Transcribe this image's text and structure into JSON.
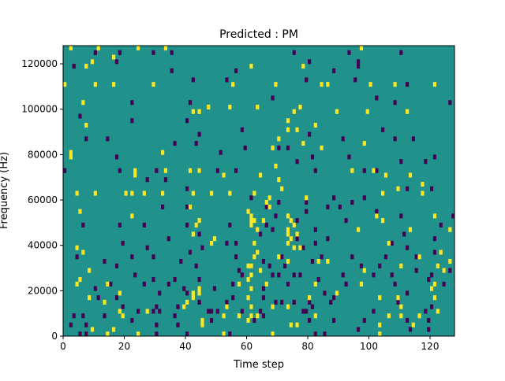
{
  "chart_data": {
    "type": "heatmap",
    "title": "Predicted : PM",
    "xlabel": "Time step",
    "ylabel": "Frequency (Hz)",
    "xlim": [
      0,
      128
    ],
    "ylim": [
      0,
      128000
    ],
    "x_ticks": [
      0,
      20,
      40,
      60,
      80,
      100,
      120
    ],
    "x_tick_labels": [
      "0",
      "20",
      "40",
      "60",
      "80",
      "100",
      "120"
    ],
    "y_ticks": [
      0,
      20000,
      40000,
      60000,
      80000,
      100000,
      120000
    ],
    "y_tick_labels": [
      "0",
      "20000",
      "40000",
      "60000",
      "80000",
      "100000",
      "120000"
    ],
    "time_steps": 128,
    "frequency_bins": 64,
    "bin_width_hz": 2000,
    "value_levels": [
      -1,
      0,
      1
    ],
    "colormap": {
      "-1": "#440154",
      "0": "#21918c",
      "1": "#fde725"
    },
    "background_value": 0,
    "cells_value_1": [
      [
        2,
        63
      ],
      [
        11,
        63
      ],
      [
        24,
        63
      ],
      [
        33,
        63
      ],
      [
        97,
        63
      ],
      [
        61,
        59
      ],
      [
        7,
        59
      ],
      [
        78,
        59
      ],
      [
        16,
        61
      ],
      [
        9,
        60
      ],
      [
        0,
        55
      ],
      [
        10,
        55
      ],
      [
        16,
        55
      ],
      [
        29,
        55
      ],
      [
        55,
        55
      ],
      [
        69,
        55
      ],
      [
        84,
        55
      ],
      [
        86,
        55
      ],
      [
        100,
        55
      ],
      [
        108,
        55
      ],
      [
        121,
        55
      ],
      [
        6,
        51
      ],
      [
        47,
        50
      ],
      [
        54,
        50
      ],
      [
        63,
        50
      ],
      [
        77,
        50
      ],
      [
        42,
        49
      ],
      [
        44,
        49
      ],
      [
        75,
        49
      ],
      [
        89,
        49
      ],
      [
        99,
        49
      ],
      [
        112,
        49
      ],
      [
        73,
        47
      ],
      [
        82,
        46
      ],
      [
        7,
        46
      ],
      [
        73,
        45
      ],
      [
        76,
        45
      ],
      [
        70,
        43
      ],
      [
        98,
        42
      ],
      [
        78,
        42
      ],
      [
        68,
        41
      ],
      [
        2,
        40
      ],
      [
        32,
        40
      ],
      [
        84,
        41
      ],
      [
        2,
        39
      ],
      [
        23,
        36
      ],
      [
        23,
        35
      ],
      [
        33,
        36
      ],
      [
        41,
        36
      ],
      [
        44,
        36
      ],
      [
        52,
        35
      ],
      [
        64,
        35
      ],
      [
        69,
        37
      ],
      [
        94,
        36
      ],
      [
        101,
        36
      ],
      [
        105,
        35
      ],
      [
        113,
        35
      ],
      [
        70,
        34
      ],
      [
        71,
        32
      ],
      [
        117,
        33
      ],
      [
        4,
        31
      ],
      [
        10,
        31
      ],
      [
        20,
        31
      ],
      [
        22,
        31
      ],
      [
        26,
        31
      ],
      [
        32,
        31
      ],
      [
        42,
        31
      ],
      [
        48,
        31
      ],
      [
        54,
        31
      ],
      [
        62,
        31
      ],
      [
        66,
        29
      ],
      [
        67,
        30
      ],
      [
        79,
        30
      ],
      [
        104,
        31
      ],
      [
        109,
        32
      ],
      [
        117,
        31
      ],
      [
        67,
        28
      ],
      [
        60,
        27
      ],
      [
        61,
        26
      ],
      [
        5,
        27
      ],
      [
        22,
        26
      ],
      [
        61,
        25
      ],
      [
        62,
        25
      ],
      [
        65,
        25
      ],
      [
        73,
        26
      ],
      [
        74,
        25
      ],
      [
        75,
        24
      ],
      [
        102,
        26
      ],
      [
        104,
        25
      ],
      [
        121,
        26
      ],
      [
        61,
        24
      ],
      [
        63,
        23
      ],
      [
        73,
        23
      ],
      [
        96,
        23
      ],
      [
        73,
        22
      ],
      [
        76,
        22
      ],
      [
        113,
        23
      ],
      [
        126,
        23
      ],
      [
        74,
        21
      ],
      [
        49,
        21
      ],
      [
        62,
        20
      ],
      [
        73,
        20
      ],
      [
        75,
        19
      ],
      [
        77,
        19
      ],
      [
        106,
        20
      ],
      [
        4,
        19
      ],
      [
        48,
        20
      ],
      [
        6,
        18
      ],
      [
        123,
        18
      ],
      [
        116,
        17
      ],
      [
        126,
        16
      ],
      [
        62,
        17
      ],
      [
        63,
        18
      ],
      [
        70,
        17
      ],
      [
        73,
        16
      ],
      [
        83,
        16
      ],
      [
        86,
        16
      ],
      [
        122,
        15
      ],
      [
        64,
        14
      ],
      [
        8,
        14
      ],
      [
        60,
        15
      ],
      [
        61,
        15
      ],
      [
        98,
        14
      ],
      [
        110,
        15
      ],
      [
        124,
        14
      ],
      [
        5,
        12
      ],
      [
        4,
        11
      ],
      [
        60,
        12
      ],
      [
        61,
        13
      ],
      [
        14,
        11
      ],
      [
        57,
        11
      ],
      [
        66,
        11
      ],
      [
        82,
        11
      ],
      [
        97,
        11
      ],
      [
        121,
        11
      ],
      [
        120,
        10
      ],
      [
        44,
        9
      ],
      [
        61,
        10
      ],
      [
        8,
        8
      ],
      [
        42,
        9
      ],
      [
        18,
        9
      ],
      [
        42,
        8
      ],
      [
        60,
        8
      ],
      [
        80,
        8
      ],
      [
        89,
        9
      ],
      [
        103,
        8
      ],
      [
        109,
        8
      ],
      [
        121,
        8
      ],
      [
        13,
        7
      ],
      [
        40,
        7
      ],
      [
        61,
        6
      ],
      [
        73,
        6
      ],
      [
        110,
        6
      ],
      [
        122,
        5
      ],
      [
        18,
        5
      ],
      [
        27,
        5
      ],
      [
        53,
        6
      ],
      [
        68,
        6
      ],
      [
        19,
        4
      ],
      [
        52,
        4
      ],
      [
        57,
        4
      ],
      [
        61,
        4
      ],
      [
        63,
        4
      ],
      [
        82,
        4
      ],
      [
        106,
        4
      ],
      [
        110,
        4
      ],
      [
        116,
        4
      ],
      [
        60,
        3
      ],
      [
        45,
        3
      ],
      [
        45,
        2
      ],
      [
        74,
        2
      ],
      [
        76,
        2
      ],
      [
        103,
        2
      ],
      [
        114,
        2
      ],
      [
        9,
        1
      ],
      [
        16,
        1
      ],
      [
        14,
        0
      ],
      [
        24,
        0
      ],
      [
        52,
        0
      ],
      [
        68,
        0
      ],
      [
        103,
        0
      ],
      [
        39,
        6
      ],
      [
        42,
        22
      ],
      [
        43,
        24
      ],
      [
        44,
        25
      ],
      [
        44,
        10
      ],
      [
        41,
        28
      ]
    ],
    "cells_value_minus_1": [
      [
        10,
        62
      ],
      [
        18,
        62
      ],
      [
        29,
        62
      ],
      [
        35,
        62
      ],
      [
        75,
        62
      ],
      [
        93,
        62
      ],
      [
        110,
        62
      ],
      [
        3,
        59
      ],
      [
        35,
        58
      ],
      [
        56,
        58
      ],
      [
        88,
        58
      ],
      [
        17,
        60
      ],
      [
        42,
        56
      ],
      [
        53,
        56
      ],
      [
        79,
        56
      ],
      [
        95,
        56
      ],
      [
        112,
        55
      ],
      [
        80,
        60
      ],
      [
        96,
        60
      ],
      [
        96,
        59
      ],
      [
        22,
        51
      ],
      [
        41,
        51
      ],
      [
        68,
        52
      ],
      [
        102,
        52
      ],
      [
        108,
        51
      ],
      [
        126,
        51
      ],
      [
        5,
        48
      ],
      [
        22,
        47
      ],
      [
        40,
        47
      ],
      [
        104,
        45
      ],
      [
        58,
        45
      ],
      [
        44,
        44
      ],
      [
        80,
        44
      ],
      [
        7,
        43
      ],
      [
        14,
        43
      ],
      [
        36,
        42
      ],
      [
        43,
        42
      ],
      [
        59,
        41
      ],
      [
        73,
        41
      ],
      [
        91,
        43
      ],
      [
        108,
        43
      ],
      [
        114,
        43
      ],
      [
        17,
        39
      ],
      [
        51,
        40
      ],
      [
        70,
        41
      ],
      [
        76,
        38
      ],
      [
        81,
        39
      ],
      [
        93,
        39
      ],
      [
        121,
        39
      ],
      [
        0,
        36
      ],
      [
        18,
        36
      ],
      [
        30,
        36
      ],
      [
        44,
        36
      ],
      [
        50,
        36
      ],
      [
        56,
        36
      ],
      [
        82,
        36
      ],
      [
        98,
        36
      ],
      [
        102,
        36
      ],
      [
        110,
        38
      ],
      [
        118,
        38
      ],
      [
        27,
        34
      ],
      [
        33,
        34
      ],
      [
        40,
        32
      ],
      [
        61,
        30
      ],
      [
        70,
        29
      ],
      [
        79,
        29
      ],
      [
        88,
        30
      ],
      [
        98,
        30
      ],
      [
        112,
        32
      ],
      [
        120,
        32
      ],
      [
        32,
        28
      ],
      [
        40,
        28
      ],
      [
        66,
        28
      ],
      [
        69,
        26
      ],
      [
        79,
        27
      ],
      [
        86,
        28
      ],
      [
        90,
        28
      ],
      [
        94,
        29
      ],
      [
        102,
        27
      ],
      [
        110,
        26
      ],
      [
        127,
        26
      ],
      [
        6,
        24
      ],
      [
        18,
        24
      ],
      [
        26,
        24
      ],
      [
        40,
        24
      ],
      [
        54,
        24
      ],
      [
        66,
        24
      ],
      [
        76,
        25
      ],
      [
        82,
        23
      ],
      [
        92,
        25
      ],
      [
        123,
        24
      ],
      [
        44,
        22
      ],
      [
        76,
        21
      ],
      [
        86,
        21
      ],
      [
        111,
        22
      ],
      [
        19,
        20
      ],
      [
        27,
        19
      ],
      [
        34,
        21
      ],
      [
        53,
        20
      ],
      [
        56,
        20
      ],
      [
        64,
        22
      ],
      [
        68,
        23
      ],
      [
        78,
        19
      ],
      [
        82,
        20
      ],
      [
        107,
        20
      ],
      [
        112,
        19
      ],
      [
        121,
        21
      ],
      [
        4,
        17
      ],
      [
        13,
        16
      ],
      [
        22,
        17
      ],
      [
        29,
        17
      ],
      [
        56,
        17
      ],
      [
        65,
        16
      ],
      [
        71,
        17
      ],
      [
        84,
        17
      ],
      [
        94,
        17
      ],
      [
        105,
        17
      ],
      [
        115,
        17
      ],
      [
        121,
        18
      ],
      [
        17,
        15
      ],
      [
        43,
        15
      ],
      [
        57,
        14
      ],
      [
        67,
        15
      ],
      [
        68,
        13
      ],
      [
        72,
        15
      ],
      [
        70,
        13
      ],
      [
        81,
        16
      ],
      [
        97,
        15
      ],
      [
        103,
        15
      ],
      [
        115,
        14
      ],
      [
        126,
        14
      ],
      [
        23,
        13
      ],
      [
        29,
        12
      ],
      [
        36,
        12
      ],
      [
        44,
        12
      ],
      [
        58,
        13
      ],
      [
        75,
        13
      ],
      [
        77,
        13
      ],
      [
        91,
        13
      ],
      [
        101,
        13
      ],
      [
        107,
        13
      ],
      [
        120,
        13
      ],
      [
        10,
        10
      ],
      [
        15,
        11
      ],
      [
        26,
        11
      ],
      [
        34,
        11
      ],
      [
        39,
        10
      ],
      [
        49,
        10
      ],
      [
        55,
        11
      ],
      [
        65,
        10
      ],
      [
        73,
        11
      ],
      [
        83,
        12
      ],
      [
        92,
        11
      ],
      [
        108,
        11
      ],
      [
        119,
        12
      ],
      [
        124,
        11
      ],
      [
        11,
        8
      ],
      [
        17,
        8
      ],
      [
        31,
        9
      ],
      [
        40,
        9
      ],
      [
        55,
        8
      ],
      [
        65,
        8
      ],
      [
        71,
        7
      ],
      [
        80,
        7
      ],
      [
        85,
        9
      ],
      [
        88,
        8
      ],
      [
        112,
        9
      ],
      [
        19,
        6
      ],
      [
        30,
        6
      ],
      [
        37,
        6
      ],
      [
        44,
        7
      ],
      [
        53,
        7
      ],
      [
        69,
        7
      ],
      [
        75,
        7
      ],
      [
        79,
        5
      ],
      [
        81,
        6
      ],
      [
        87,
        7
      ],
      [
        109,
        7
      ],
      [
        120,
        6
      ],
      [
        3,
        4
      ],
      [
        6,
        4
      ],
      [
        13,
        4
      ],
      [
        24,
        5
      ],
      [
        29,
        5
      ],
      [
        31,
        5
      ],
      [
        36,
        4
      ],
      [
        47,
        5
      ],
      [
        48,
        5
      ],
      [
        50,
        5
      ],
      [
        58,
        5
      ],
      [
        64,
        5
      ],
      [
        65,
        4
      ],
      [
        78,
        5
      ],
      [
        101,
        5
      ],
      [
        118,
        5
      ],
      [
        2,
        2
      ],
      [
        7,
        2
      ],
      [
        22,
        3
      ],
      [
        30,
        2
      ],
      [
        37,
        2
      ],
      [
        48,
        3
      ],
      [
        62,
        3
      ],
      [
        80,
        3
      ],
      [
        88,
        3
      ],
      [
        98,
        3
      ],
      [
        112,
        3
      ],
      [
        119,
        3
      ],
      [
        5,
        0
      ],
      [
        7,
        0
      ],
      [
        30,
        0
      ],
      [
        40,
        0
      ],
      [
        54,
        0
      ],
      [
        82,
        0
      ],
      [
        85,
        0
      ],
      [
        96,
        1
      ],
      [
        113,
        1
      ],
      [
        119,
        1
      ],
      [
        38,
        16
      ],
      [
        41,
        18
      ],
      [
        45,
        19
      ]
    ]
  }
}
